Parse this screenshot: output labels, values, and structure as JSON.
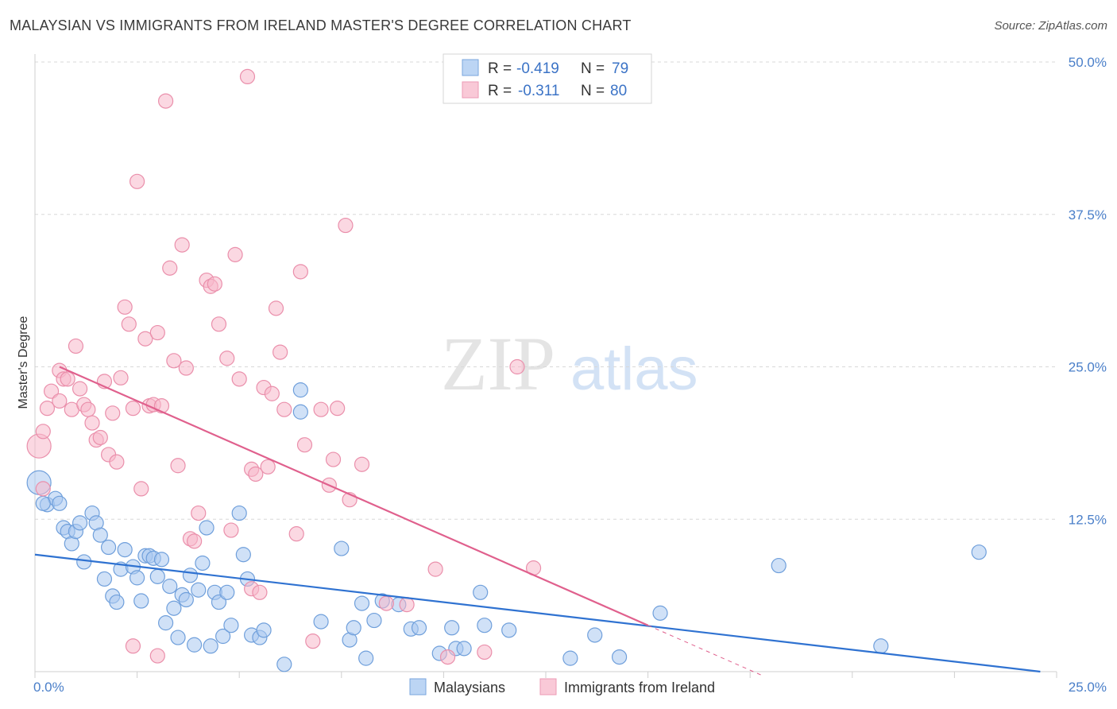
{
  "title": "MALAYSIAN VS IMMIGRANTS FROM IRELAND MASTER'S DEGREE CORRELATION CHART",
  "source": "Source: ZipAtlas.com",
  "watermark": {
    "zip": "ZIP",
    "atlas": "atlas"
  },
  "colors": {
    "blue_fill": "#a9c8f0",
    "blue_stroke": "#6f9fdb",
    "blue_line": "#2f72d1",
    "pink_fill": "#f7b8cb",
    "pink_stroke": "#ea8fab",
    "pink_line": "#e0608d",
    "tick": "#4a7fc9",
    "grid": "#d8d8d8"
  },
  "legend": {
    "rows": [
      {
        "r_label": "R =",
        "r_value": "-0.419",
        "n_label": "N =",
        "n_value": "79"
      },
      {
        "r_label": "R =",
        "r_value": "-0.311",
        "n_label": "N =",
        "n_value": "80"
      }
    ]
  },
  "chart_data": {
    "type": "scatter",
    "ylabel": "Master's Degree",
    "xlim": [
      0,
      25
    ],
    "ylim": [
      0,
      50
    ],
    "y_ticks": [
      "12.5%",
      "25.0%",
      "37.5%",
      "50.0%"
    ],
    "y_tick_values": [
      12.5,
      25,
      37.5,
      50
    ],
    "x_tick_labels": [
      "0.0%",
      "25.0%"
    ],
    "grid": "horizontal dashed",
    "legend_position": "top-center",
    "series": [
      {
        "name": "Malaysians",
        "color": "#a9c8f0",
        "trend": {
          "x": [
            0,
            24.6
          ],
          "y": [
            9.6,
            0.0
          ]
        },
        "points": [
          [
            0.1,
            15.5
          ],
          [
            0.3,
            13.7
          ],
          [
            0.5,
            14.2
          ],
          [
            0.6,
            13.8
          ],
          [
            0.7,
            11.8
          ],
          [
            0.8,
            11.5
          ],
          [
            0.9,
            10.5
          ],
          [
            1.0,
            11.5
          ],
          [
            1.1,
            12.2
          ],
          [
            1.2,
            9.0
          ],
          [
            1.4,
            13.0
          ],
          [
            1.5,
            12.2
          ],
          [
            1.6,
            11.2
          ],
          [
            1.7,
            7.6
          ],
          [
            1.8,
            10.2
          ],
          [
            1.9,
            6.2
          ],
          [
            2.0,
            5.7
          ],
          [
            2.1,
            8.4
          ],
          [
            2.2,
            10.0
          ],
          [
            2.4,
            8.6
          ],
          [
            2.5,
            7.7
          ],
          [
            2.6,
            5.8
          ],
          [
            2.7,
            9.5
          ],
          [
            2.8,
            9.5
          ],
          [
            2.9,
            9.3
          ],
          [
            3.0,
            7.8
          ],
          [
            3.1,
            9.2
          ],
          [
            3.2,
            4.0
          ],
          [
            3.3,
            7.0
          ],
          [
            3.4,
            5.2
          ],
          [
            3.5,
            2.8
          ],
          [
            3.6,
            6.3
          ],
          [
            3.7,
            5.9
          ],
          [
            3.8,
            7.9
          ],
          [
            3.9,
            2.2
          ],
          [
            4.0,
            6.7
          ],
          [
            4.1,
            8.9
          ],
          [
            4.2,
            11.8
          ],
          [
            4.3,
            2.1
          ],
          [
            4.4,
            6.5
          ],
          [
            4.5,
            5.7
          ],
          [
            4.6,
            2.9
          ],
          [
            4.7,
            6.5
          ],
          [
            4.8,
            3.8
          ],
          [
            5.0,
            13.0
          ],
          [
            5.1,
            9.6
          ],
          [
            5.2,
            7.6
          ],
          [
            5.3,
            3.0
          ],
          [
            5.5,
            2.8
          ],
          [
            5.6,
            3.4
          ],
          [
            6.1,
            0.6
          ],
          [
            6.5,
            23.1
          ],
          [
            6.5,
            21.3
          ],
          [
            7.0,
            4.1
          ],
          [
            7.5,
            10.1
          ],
          [
            7.7,
            2.6
          ],
          [
            7.8,
            3.6
          ],
          [
            8.0,
            5.6
          ],
          [
            8.1,
            1.1
          ],
          [
            8.3,
            4.2
          ],
          [
            8.5,
            5.8
          ],
          [
            8.9,
            5.5
          ],
          [
            9.2,
            3.5
          ],
          [
            9.4,
            3.6
          ],
          [
            9.9,
            1.5
          ],
          [
            10.2,
            3.6
          ],
          [
            10.3,
            1.9
          ],
          [
            10.5,
            1.9
          ],
          [
            10.9,
            6.5
          ],
          [
            11.0,
            3.8
          ],
          [
            11.6,
            3.4
          ],
          [
            13.1,
            1.1
          ],
          [
            13.7,
            3.0
          ],
          [
            14.3,
            1.2
          ],
          [
            15.3,
            4.8
          ],
          [
            18.2,
            8.7
          ],
          [
            20.7,
            2.1
          ],
          [
            23.1,
            9.8
          ],
          [
            0.2,
            13.8
          ]
        ]
      },
      {
        "name": "Immigrants from Ireland",
        "color": "#f7b8cb",
        "trend": {
          "x": [
            0.6,
            15.0
          ],
          "y": [
            25.0,
            3.8
          ]
        },
        "points": [
          [
            0.1,
            18.5
          ],
          [
            0.2,
            19.7
          ],
          [
            0.2,
            15.0
          ],
          [
            0.3,
            21.6
          ],
          [
            0.4,
            23.0
          ],
          [
            0.6,
            24.7
          ],
          [
            0.6,
            22.2
          ],
          [
            0.7,
            24.0
          ],
          [
            0.8,
            24.0
          ],
          [
            0.9,
            21.5
          ],
          [
            1.0,
            26.7
          ],
          [
            1.1,
            23.2
          ],
          [
            1.2,
            21.9
          ],
          [
            1.3,
            21.5
          ],
          [
            1.4,
            20.4
          ],
          [
            1.5,
            19.0
          ],
          [
            1.6,
            19.2
          ],
          [
            1.7,
            23.8
          ],
          [
            1.8,
            17.8
          ],
          [
            1.9,
            21.2
          ],
          [
            2.0,
            17.2
          ],
          [
            2.1,
            24.1
          ],
          [
            2.2,
            29.9
          ],
          [
            2.3,
            28.5
          ],
          [
            2.4,
            21.6
          ],
          [
            2.5,
            40.2
          ],
          [
            2.6,
            15.0
          ],
          [
            2.7,
            27.3
          ],
          [
            2.8,
            21.8
          ],
          [
            2.9,
            21.9
          ],
          [
            3.0,
            27.8
          ],
          [
            3.1,
            21.8
          ],
          [
            3.2,
            46.8
          ],
          [
            3.3,
            33.1
          ],
          [
            3.4,
            25.5
          ],
          [
            3.5,
            16.9
          ],
          [
            3.6,
            35.0
          ],
          [
            3.7,
            24.9
          ],
          [
            3.8,
            10.9
          ],
          [
            3.9,
            10.7
          ],
          [
            4.0,
            13.0
          ],
          [
            4.2,
            32.1
          ],
          [
            4.3,
            31.6
          ],
          [
            4.4,
            31.8
          ],
          [
            4.5,
            28.5
          ],
          [
            4.7,
            25.7
          ],
          [
            4.8,
            11.6
          ],
          [
            4.9,
            34.2
          ],
          [
            5.0,
            24.0
          ],
          [
            5.2,
            48.8
          ],
          [
            5.3,
            16.6
          ],
          [
            5.4,
            16.2
          ],
          [
            5.6,
            23.3
          ],
          [
            5.7,
            16.8
          ],
          [
            5.8,
            22.8
          ],
          [
            5.9,
            29.8
          ],
          [
            6.0,
            26.2
          ],
          [
            6.1,
            21.5
          ],
          [
            6.4,
            11.3
          ],
          [
            6.5,
            32.8
          ],
          [
            6.6,
            18.6
          ],
          [
            6.8,
            2.5
          ],
          [
            7.0,
            21.5
          ],
          [
            7.2,
            15.3
          ],
          [
            7.3,
            17.4
          ],
          [
            7.4,
            21.6
          ],
          [
            7.6,
            36.6
          ],
          [
            7.7,
            14.1
          ],
          [
            8.0,
            17.0
          ],
          [
            8.6,
            5.6
          ],
          [
            9.1,
            5.5
          ],
          [
            9.8,
            8.4
          ],
          [
            10.1,
            1.2
          ],
          [
            11.0,
            1.6
          ],
          [
            11.8,
            25.0
          ],
          [
            12.2,
            8.5
          ],
          [
            2.4,
            2.1
          ],
          [
            3.0,
            1.3
          ],
          [
            5.3,
            6.8
          ],
          [
            5.5,
            6.5
          ]
        ]
      }
    ]
  }
}
